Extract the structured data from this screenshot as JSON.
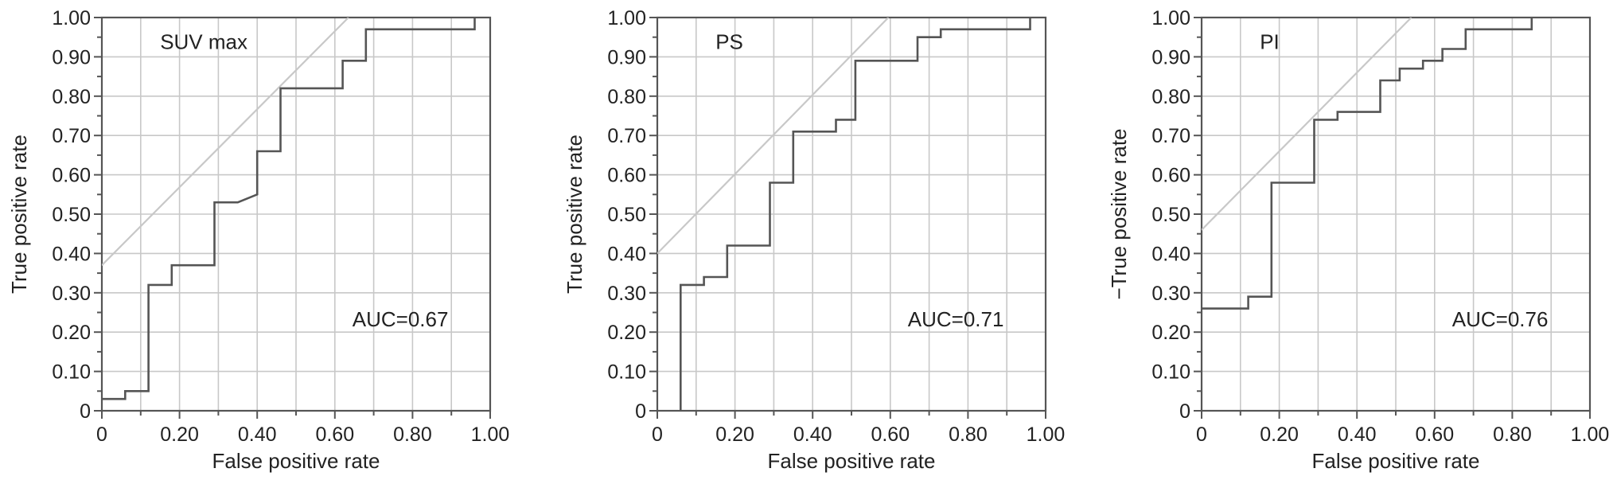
{
  "colors": {
    "roc_line": "#555555",
    "reference_line": "#c8c8c8",
    "grid": "#c8c8c8",
    "frame": "#555555"
  },
  "chart_data": [
    {
      "type": "line",
      "panel_label": "SUV max",
      "annotation": "AUC=0.67",
      "xlabel": "False positive rate",
      "ylabel": "True positive rate",
      "xlim": [
        0,
        1
      ],
      "ylim": [
        0,
        1
      ],
      "x_ticks": [
        "0",
        "0.20",
        "0.40",
        "0.60",
        "0.80",
        "1.00"
      ],
      "y_ticks": [
        "0",
        "0.10",
        "0.20",
        "0.30",
        "0.40",
        "0.50",
        "0.60",
        "0.70",
        "0.80",
        "0.90",
        "1.00"
      ],
      "grid": true,
      "series": [
        {
          "x": [
            0,
            0.06,
            0.06,
            0.12,
            0.12,
            0.18,
            0.18,
            0.29,
            0.29,
            0.35,
            0.4,
            0.4,
            0.46,
            0.46,
            0.62,
            0.62,
            0.68,
            0.68,
            0.96,
            0.96
          ],
          "y": [
            0.03,
            0.03,
            0.05,
            0.05,
            0.32,
            0.32,
            0.37,
            0.37,
            0.53,
            0.53,
            0.55,
            0.66,
            0.66,
            0.82,
            0.82,
            0.89,
            0.89,
            0.97,
            0.97,
            1.0
          ]
        },
        {
          "x": [
            0,
            0.635
          ],
          "y": [
            0.37,
            1.0
          ]
        }
      ]
    },
    {
      "type": "line",
      "panel_label": "PS",
      "annotation": "AUC=0.71",
      "xlabel": "False positive rate",
      "ylabel": "True positive rate",
      "xlim": [
        0,
        1
      ],
      "ylim": [
        0,
        1
      ],
      "x_ticks": [
        "0",
        "0.20",
        "0.40",
        "0.60",
        "0.80",
        "1.00"
      ],
      "y_ticks": [
        "0",
        "0.10",
        "0.20",
        "0.30",
        "0.40",
        "0.50",
        "0.60",
        "0.70",
        "0.80",
        "0.90",
        "1.00"
      ],
      "grid": true,
      "series": [
        {
          "x": [
            0.06,
            0.06,
            0.12,
            0.12,
            0.18,
            0.18,
            0.29,
            0.29,
            0.35,
            0.35,
            0.46,
            0.46,
            0.51,
            0.51,
            0.67,
            0.67,
            0.73,
            0.73,
            0.96,
            0.96
          ],
          "y": [
            0,
            0.32,
            0.32,
            0.34,
            0.34,
            0.42,
            0.42,
            0.58,
            0.58,
            0.71,
            0.71,
            0.74,
            0.74,
            0.89,
            0.89,
            0.95,
            0.95,
            0.97,
            0.97,
            1.0
          ]
        },
        {
          "x": [
            0,
            0.595
          ],
          "y": [
            0.4,
            1.0
          ]
        }
      ]
    },
    {
      "type": "line",
      "panel_label": "PI",
      "annotation": "AUC=0.76",
      "xlabel": "False positive rate",
      "ylabel": "−True positive rate",
      "xlim": [
        0,
        1
      ],
      "ylim": [
        0,
        1
      ],
      "x_ticks": [
        "0",
        "0.20",
        "0.40",
        "0.60",
        "0.80",
        "1.00"
      ],
      "y_ticks": [
        "0",
        "0.10",
        "0.20",
        "0.30",
        "0.40",
        "0.50",
        "0.60",
        "0.70",
        "0.80",
        "0.90",
        "1.00"
      ],
      "grid": true,
      "series": [
        {
          "x": [
            0,
            0.12,
            0.12,
            0.18,
            0.18,
            0.29,
            0.29,
            0.35,
            0.35,
            0.46,
            0.46,
            0.51,
            0.51,
            0.57,
            0.57,
            0.62,
            0.62,
            0.68,
            0.68,
            0.85,
            0.85
          ],
          "y": [
            0.26,
            0.26,
            0.29,
            0.29,
            0.58,
            0.58,
            0.74,
            0.74,
            0.76,
            0.76,
            0.84,
            0.84,
            0.87,
            0.87,
            0.89,
            0.89,
            0.92,
            0.92,
            0.97,
            0.97,
            1.0
          ]
        },
        {
          "x": [
            0,
            0.54
          ],
          "y": [
            0.46,
            1.0
          ]
        }
      ]
    }
  ]
}
